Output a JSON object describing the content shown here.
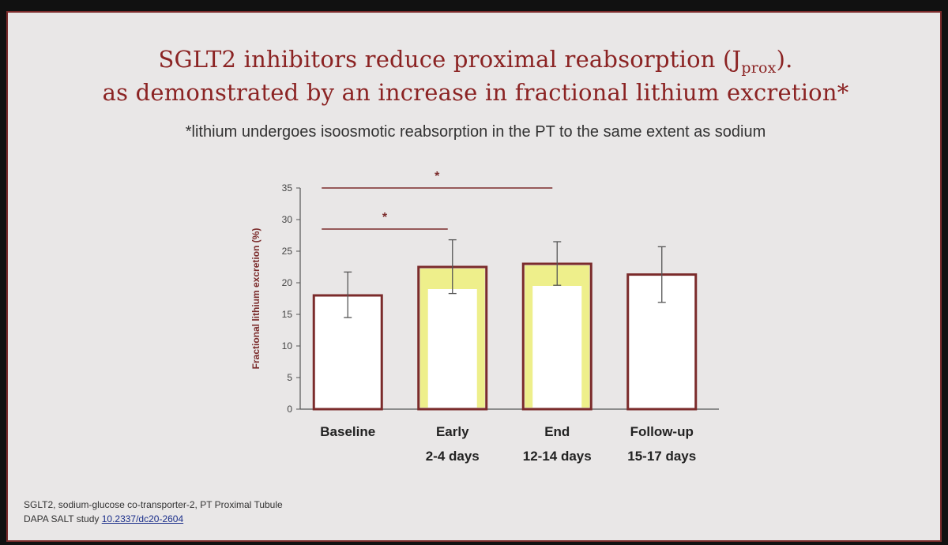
{
  "title": {
    "line1_main": "SGLT2 inhibitors reduce proximal reabsorption (J",
    "line1_sub": "prox",
    "line1_end": ").",
    "line2": "as demonstrated by an increase in fractional lithium excretion*"
  },
  "subtitle": "*lithium undergoes isoosmotic reabsorption in the PT to the same extent as sodium",
  "footnote": {
    "line1": "SGLT2, sodium-glucose co-transporter-2, PT Proximal Tubule",
    "line2_prefix": "DAPA SALT study ",
    "line2_link": "10.2337/dc20-2604"
  },
  "colors": {
    "title": "#8b2323",
    "bar_edge": "#7b2b2b",
    "highlight": "#eef07a"
  },
  "chart_data": {
    "type": "bar",
    "ylabel": "Fractional lithium excretion (%)",
    "ylim": [
      0,
      35
    ],
    "yticks": [
      0,
      5,
      10,
      15,
      20,
      25,
      30,
      35
    ],
    "categories": [
      [
        "Baseline",
        ""
      ],
      [
        "Early",
        "2-4 days"
      ],
      [
        "End",
        "12-14 days"
      ],
      [
        "Follow-up",
        "15-17 days"
      ]
    ],
    "values": [
      18.0,
      22.5,
      23.0,
      21.3
    ],
    "error": [
      [
        14.5,
        21.7
      ],
      [
        18.3,
        26.8
      ],
      [
        19.6,
        26.5
      ],
      [
        16.9,
        25.7
      ]
    ],
    "highlighted": [
      false,
      true,
      true,
      false
    ],
    "significance": [
      {
        "from": 0,
        "to": 1,
        "label": "*",
        "y": 28.5
      },
      {
        "from": 0,
        "to": 2,
        "label": "*",
        "y": 35.0
      }
    ]
  }
}
